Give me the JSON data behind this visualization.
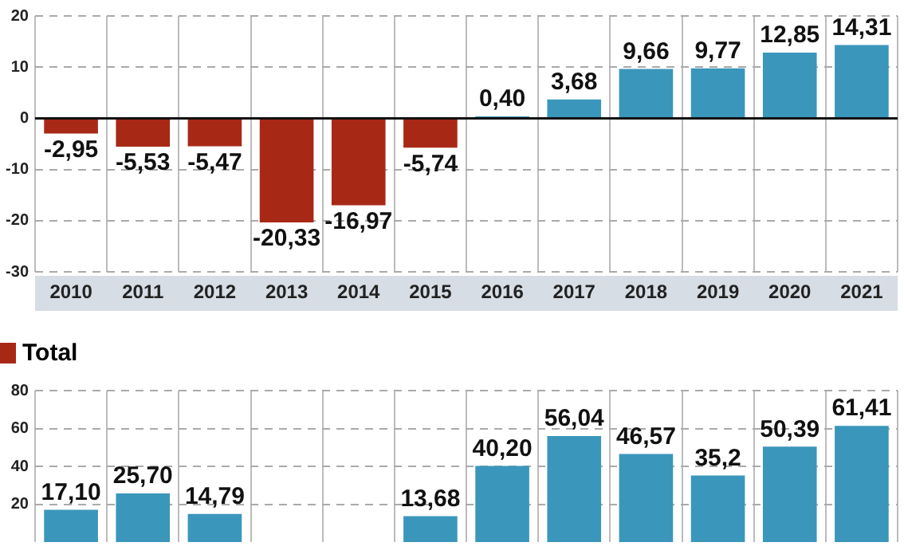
{
  "chart_data": [
    {
      "type": "bar",
      "categories": [
        "2010",
        "2011",
        "2012",
        "2013",
        "2014",
        "2015",
        "2016",
        "2017",
        "2018",
        "2019",
        "2020",
        "2021"
      ],
      "values": [
        -2.95,
        -5.53,
        -5.47,
        -20.33,
        -16.97,
        -5.74,
        0.4,
        3.68,
        9.66,
        9.77,
        12.85,
        14.31
      ],
      "value_labels": [
        "-2,95",
        "-5,53",
        "-5,47",
        "-20,33",
        "-16,97",
        "-5,74",
        "0,40",
        "3,68",
        "9,66",
        "9,77",
        "12,85",
        "14,31"
      ],
      "colors": [
        "#a82816",
        "#a82816",
        "#a82816",
        "#a82816",
        "#a82816",
        "#a82816",
        "#3b96bb",
        "#3b96bb",
        "#3b96bb",
        "#3b96bb",
        "#3b96bb",
        "#3b96bb"
      ],
      "ylim": [
        -30,
        20
      ],
      "yticks": [
        -30,
        -20,
        -10,
        0,
        10,
        20
      ],
      "grid": true,
      "ref_lines": [
        {
          "axis": "y",
          "value": 0,
          "color": "#111111"
        }
      ]
    },
    {
      "type": "bar",
      "title": "Total",
      "categories": [
        null,
        null,
        null,
        null,
        null,
        null,
        null,
        null,
        null,
        null,
        null,
        null
      ],
      "values": [
        17.1,
        25.7,
        14.79,
        null,
        null,
        13.68,
        40.2,
        56.04,
        46.57,
        35.2,
        50.39,
        61.41
      ],
      "value_labels": [
        "17,10",
        "25,70",
        "14,79",
        null,
        null,
        "13,68",
        "40,20",
        "56,04",
        "46,57",
        "35,2",
        "50,39",
        "61,41"
      ],
      "color": "#3b96bb",
      "ylim": [
        0,
        80
      ],
      "yticks": [
        20,
        40,
        60,
        80
      ],
      "grid": true
    }
  ]
}
